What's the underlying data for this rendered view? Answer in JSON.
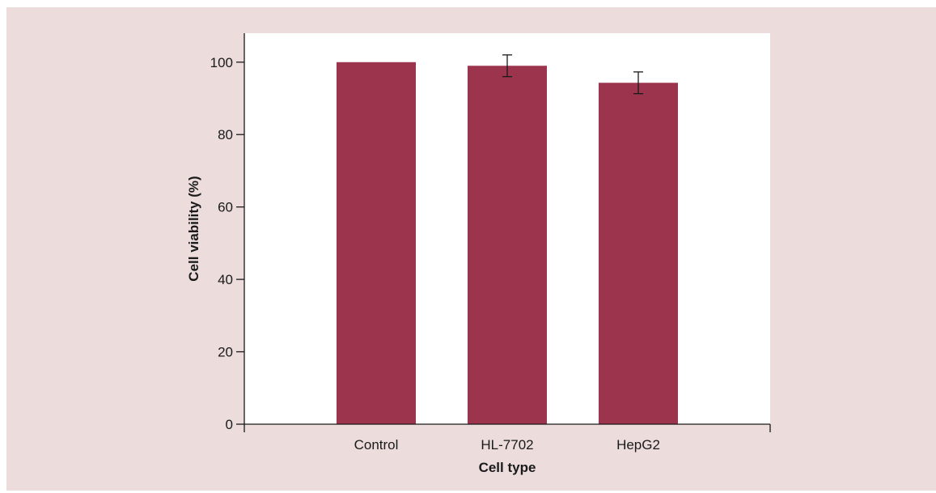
{
  "chart_data": {
    "type": "bar",
    "title": "",
    "xlabel": "Cell type",
    "ylabel": "Cell viability (%)",
    "categories": [
      "Control",
      "HL-7702",
      "HepG2"
    ],
    "values": [
      100,
      99,
      94.3
    ],
    "error": [
      null,
      3,
      3
    ],
    "ylim": [
      0,
      108
    ],
    "yticks": [
      0,
      20,
      40,
      60,
      80,
      100
    ],
    "grid": false,
    "legend": "none",
    "colors": {
      "bar": "#9b344c",
      "plot_background": "#ffffff",
      "page_background": "#ecdcdc",
      "axis": "#1a1a1a"
    }
  }
}
